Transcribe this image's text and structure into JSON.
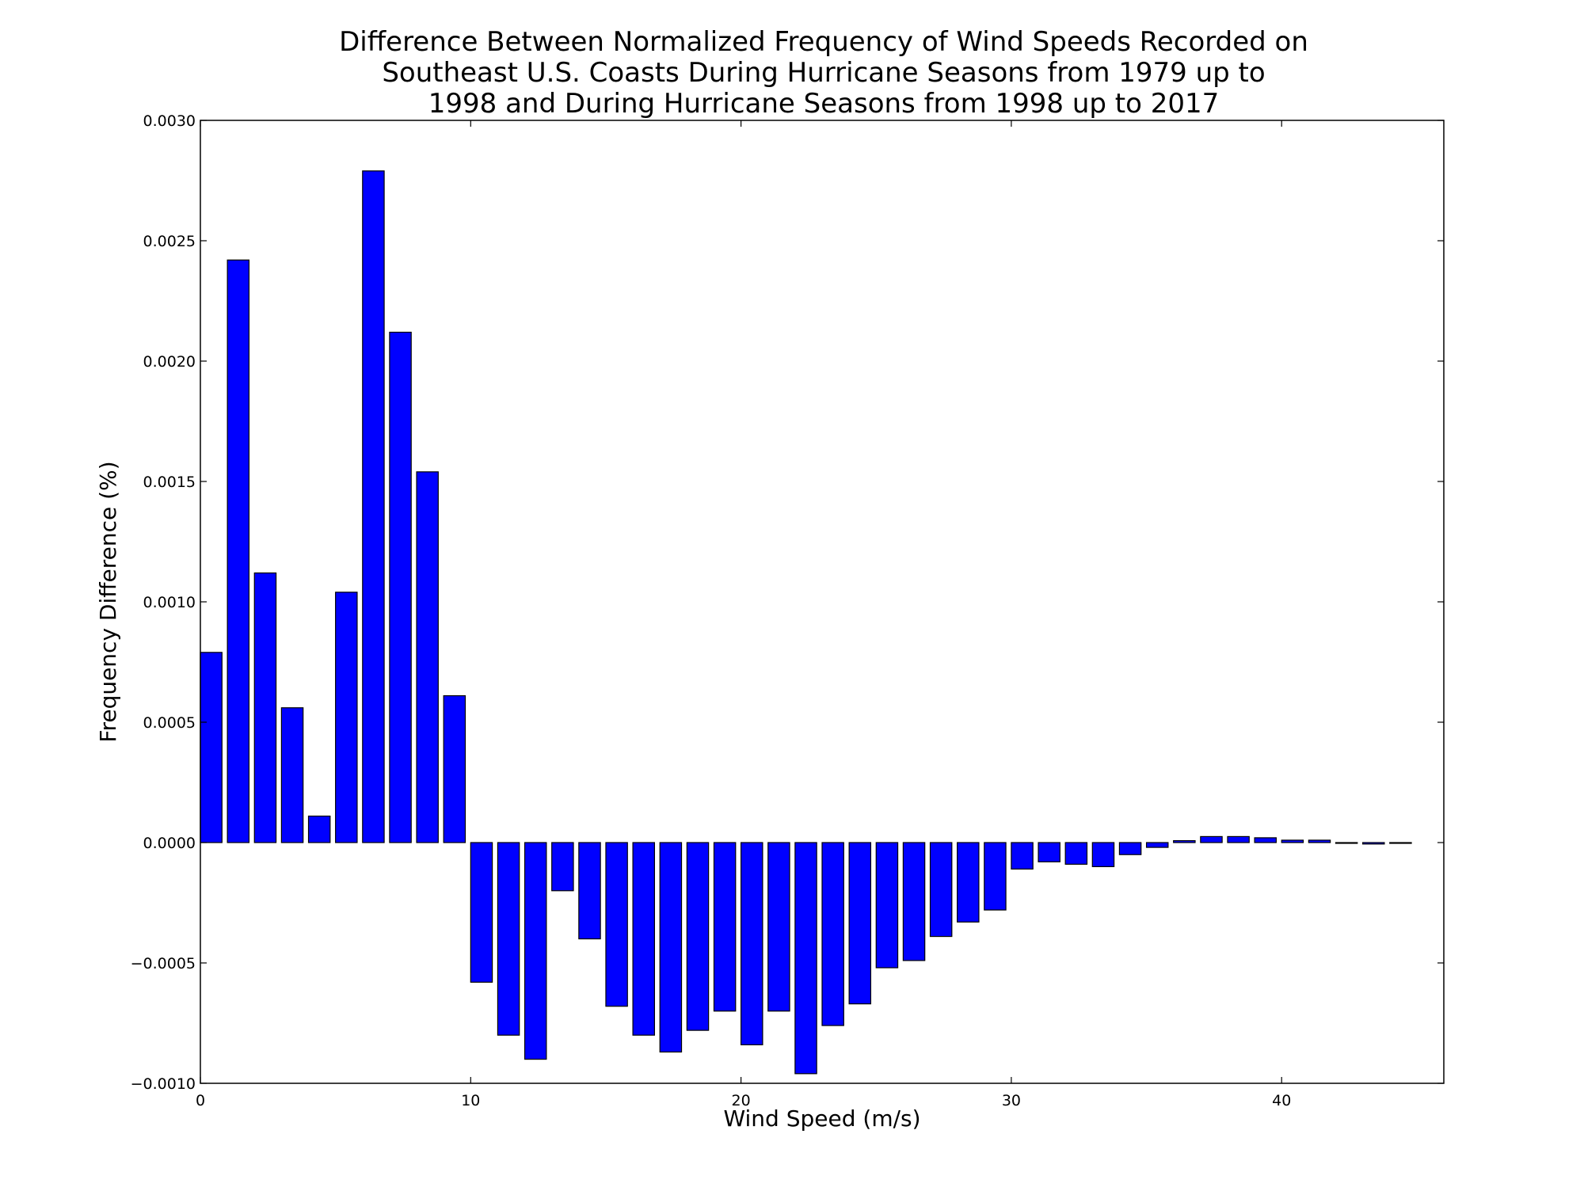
{
  "chart_data": {
    "type": "bar",
    "title_lines": [
      "Difference Between Normalized Frequency of Wind Speeds Recorded on",
      "Southeast U.S. Coasts During Hurricane Seasons from 1979 up to",
      "1998 and During Hurricane Seasons from 1998 up to 2017"
    ],
    "xlabel": "Wind Speed (m/s)",
    "ylabel": "Frequency Difference (%)",
    "xlim": [
      0,
      46
    ],
    "ylim": [
      -0.001,
      0.003
    ],
    "xticks": [
      0,
      10,
      20,
      30,
      40
    ],
    "xtick_labels": [
      "0",
      "10",
      "20",
      "30",
      "40"
    ],
    "yticks": [
      -0.001,
      -0.0005,
      0.0,
      0.0005,
      0.001,
      0.0015,
      0.002,
      0.0025,
      0.003
    ],
    "ytick_labels": [
      "−0.0010",
      "−0.0005",
      "0.0000",
      "0.0005",
      "0.0010",
      "0.0015",
      "0.0020",
      "0.0025",
      "0.0030"
    ],
    "bar_width": 0.8,
    "bar_color": "#0000ff",
    "edge_color": "#000000",
    "grid": false,
    "x": [
      0,
      1,
      2,
      3,
      4,
      5,
      6,
      7,
      8,
      9,
      10,
      11,
      12,
      13,
      14,
      15,
      16,
      17,
      18,
      19,
      20,
      21,
      22,
      23,
      24,
      25,
      26,
      27,
      28,
      29,
      30,
      31,
      32,
      33,
      34,
      35,
      36,
      37,
      38,
      39,
      40,
      41,
      42,
      43,
      44
    ],
    "values": [
      0.00079,
      0.00242,
      0.00112,
      0.00056,
      0.00011,
      0.00104,
      0.00279,
      0.00212,
      0.00154,
      0.00061,
      -0.00058,
      -0.0008,
      -0.0009,
      -0.0002,
      -0.0004,
      -0.00068,
      -0.0008,
      -0.00087,
      -0.00078,
      -0.0007,
      -0.00084,
      -0.0007,
      -0.00096,
      -0.00076,
      -0.00067,
      -0.00052,
      -0.00049,
      -0.00039,
      -0.00033,
      -0.00028,
      -0.00011,
      -8e-05,
      -9e-05,
      -0.0001,
      -5e-05,
      -2e-05,
      8e-06,
      2.5e-05,
      2.5e-05,
      2e-05,
      1e-05,
      1e-05,
      -3e-06,
      -6e-06,
      -3e-06
    ]
  }
}
